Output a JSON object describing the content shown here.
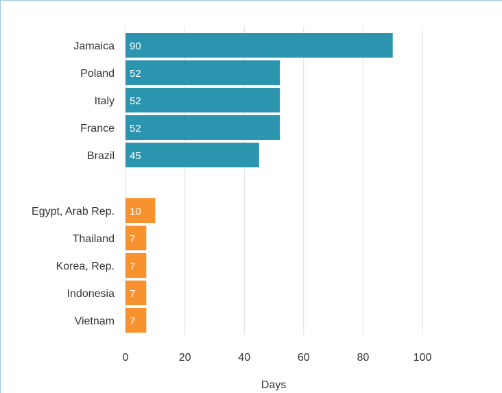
{
  "chart_data": {
    "type": "bar",
    "orientation": "horizontal",
    "title": "",
    "xlabel": "Days",
    "ylabel": "",
    "xlim": [
      0,
      100
    ],
    "xticks": [
      "0",
      "20",
      "40",
      "60",
      "80",
      "100"
    ],
    "grid": "vertical",
    "groups": [
      {
        "color": "#2b95b0",
        "categories": [
          "Jamaica",
          "Poland",
          "Italy",
          "France",
          "Brazil"
        ],
        "values": [
          90,
          52,
          52,
          52,
          45
        ],
        "labels": [
          "90",
          "52",
          "52",
          "52",
          "45"
        ]
      },
      {
        "color": "#f7922f",
        "categories": [
          "Egypt, Arab Rep.",
          "Thailand",
          "Korea, Rep.",
          "Indonesia",
          "Vietnam"
        ],
        "values": [
          10,
          7,
          7,
          7,
          7
        ],
        "labels": [
          "10",
          "7",
          "7",
          "7",
          "7"
        ]
      }
    ]
  }
}
